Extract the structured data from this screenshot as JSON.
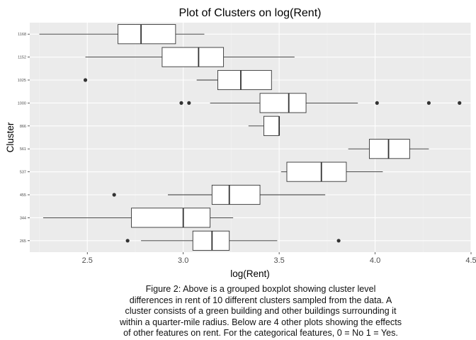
{
  "chart_data": {
    "type": "boxplot",
    "title": "Plot of Clusters on log(Rent)",
    "xlabel": "log(Rent)",
    "ylabel": "Cluster",
    "xlim": [
      2.2,
      4.5
    ],
    "xticks": [
      "2.5",
      "3.0",
      "3.5",
      "4.0",
      "4.5"
    ],
    "xtick_values": [
      2.5,
      3.0,
      3.5,
      4.0,
      4.5
    ],
    "grid": true,
    "legend": "none",
    "categories": [
      "1168",
      "1152",
      "1025",
      "1000",
      "866",
      "561",
      "537",
      "455",
      "344",
      "265"
    ],
    "boxes": [
      {
        "cluster": "1168",
        "whisker_low": 2.25,
        "q1": 2.66,
        "median": 2.78,
        "q3": 2.96,
        "whisker_high": 3.11,
        "outliers": []
      },
      {
        "cluster": "1152",
        "whisker_low": 2.49,
        "q1": 2.89,
        "median": 3.08,
        "q3": 3.21,
        "whisker_high": 3.58,
        "outliers": []
      },
      {
        "cluster": "1025",
        "whisker_low": 3.07,
        "q1": 3.18,
        "median": 3.3,
        "q3": 3.46,
        "whisker_high": 3.46,
        "outliers": [
          2.49
        ]
      },
      {
        "cluster": "1000",
        "whisker_low": 3.14,
        "q1": 3.4,
        "median": 3.55,
        "q3": 3.64,
        "whisker_high": 3.91,
        "outliers": [
          2.99,
          3.03,
          4.01,
          4.28,
          4.44
        ]
      },
      {
        "cluster": "866",
        "whisker_low": 3.34,
        "q1": 3.42,
        "median": 3.5,
        "q3": 3.5,
        "whisker_high": 3.5,
        "outliers": []
      },
      {
        "cluster": "561",
        "whisker_low": 3.86,
        "q1": 3.97,
        "median": 4.07,
        "q3": 4.18,
        "whisker_high": 4.28,
        "outliers": []
      },
      {
        "cluster": "537",
        "whisker_low": 3.51,
        "q1": 3.54,
        "median": 3.72,
        "q3": 3.85,
        "whisker_high": 4.04,
        "outliers": []
      },
      {
        "cluster": "455",
        "whisker_low": 2.92,
        "q1": 3.15,
        "median": 3.24,
        "q3": 3.4,
        "whisker_high": 3.74,
        "outliers": [
          2.64
        ]
      },
      {
        "cluster": "344",
        "whisker_low": 2.27,
        "q1": 2.73,
        "median": 3.0,
        "q3": 3.14,
        "whisker_high": 3.26,
        "outliers": []
      },
      {
        "cluster": "265",
        "whisker_low": 2.78,
        "q1": 3.05,
        "median": 3.15,
        "q3": 3.24,
        "whisker_high": 3.49,
        "outliers": [
          2.71,
          3.81
        ]
      }
    ]
  },
  "caption": [
    "Figure 2: Above is a grouped boxplot showing cluster level",
    "differences in rent of 10 different clusters sampled from the data. A",
    "cluster consists of a green building and other buildings surrounding it",
    "within a quarter-mile radius. Below are 4 other plots showing the effects",
    "of other features on rent. For the categorical features, 0 = No 1 = Yes."
  ],
  "colors": {
    "panel_background": "#ebebeb",
    "grid_major": "#ffffff",
    "grid_minor": "#f2f2f2",
    "box_fill": "#ffffff",
    "box_stroke": "#333333",
    "outlier": "#333333",
    "text": "#1a1a1a",
    "tick_text": "#4d4d4d"
  }
}
